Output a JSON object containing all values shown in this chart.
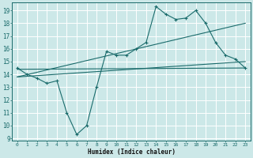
{
  "xlabel": "Humidex (Indice chaleur)",
  "bg_color": "#cce8e8",
  "grid_color": "#ffffff",
  "line_color": "#1a6b6b",
  "xlim": [
    -0.5,
    23.5
  ],
  "ylim": [
    8.8,
    19.6
  ],
  "yticks": [
    9,
    10,
    11,
    12,
    13,
    14,
    15,
    16,
    17,
    18,
    19
  ],
  "xticks": [
    0,
    1,
    2,
    3,
    4,
    5,
    6,
    7,
    8,
    9,
    10,
    11,
    12,
    13,
    14,
    15,
    16,
    17,
    18,
    19,
    20,
    21,
    22,
    23
  ],
  "series1_x": [
    0,
    1,
    2,
    3,
    4,
    5,
    6,
    7,
    8,
    9,
    10,
    11,
    12,
    13,
    14,
    15,
    16,
    17,
    18,
    19,
    20,
    21,
    22,
    23
  ],
  "series1_y": [
    14.5,
    14.0,
    13.7,
    13.3,
    13.5,
    11.0,
    9.3,
    10.0,
    13.0,
    15.8,
    15.5,
    15.5,
    16.0,
    16.5,
    19.3,
    18.7,
    18.3,
    18.4,
    19.0,
    18.0,
    16.5,
    15.5,
    15.2,
    14.5
  ],
  "series2_x": [
    0,
    23
  ],
  "series2_y": [
    14.4,
    14.5
  ],
  "series3_x": [
    0,
    23
  ],
  "series3_y": [
    13.8,
    18.0
  ],
  "series4_x": [
    0,
    23
  ],
  "series4_y": [
    13.8,
    15.0
  ]
}
